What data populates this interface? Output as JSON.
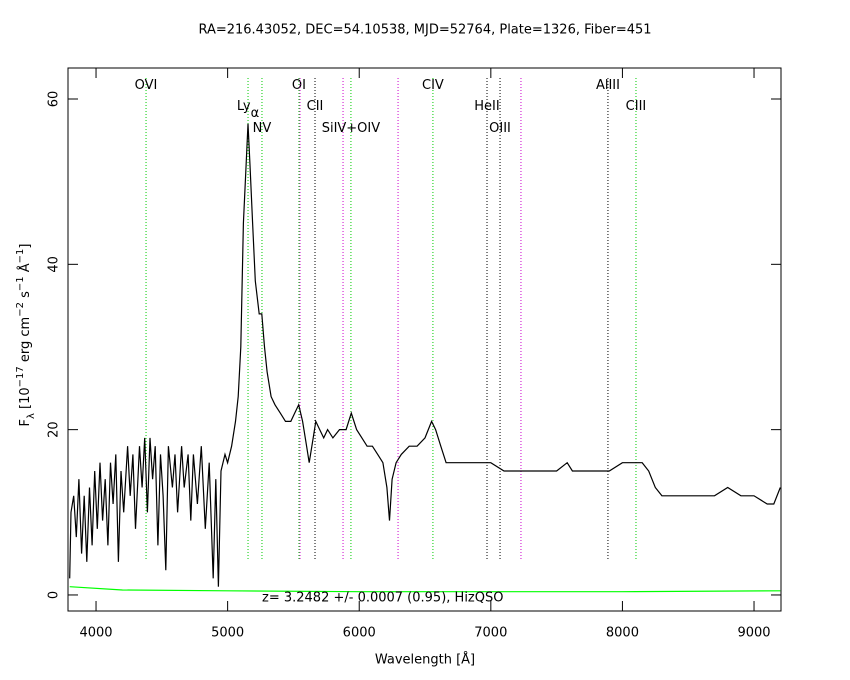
{
  "chart_data": {
    "type": "line",
    "title": "RA=216.43052, DEC=54.10538, MJD=52764, Plate=1326, Fiber=451",
    "xlabel": "Wavelength [Å]",
    "ylabel": [
      {
        "text": "F"
      },
      {
        "text": "λ",
        "shift": "sub"
      },
      {
        "text": " [10"
      },
      {
        "text": "−17",
        "shift": "super"
      },
      {
        "text": " erg cm"
      },
      {
        "text": "−2",
        "shift": "super"
      },
      {
        "text": " s"
      },
      {
        "text": "−1",
        "shift": "super"
      },
      {
        "text": " Å"
      },
      {
        "text": "−1",
        "shift": "super"
      },
      {
        "text": "]"
      }
    ],
    "annotation": "z= 3.2482 +/- 0.0007 (0.95), HizQSO",
    "xlim": [
      3787,
      9205
    ],
    "ylim": [
      -1.94,
      63.75
    ],
    "xticks": [
      4000,
      5000,
      6000,
      7000,
      8000,
      9000
    ],
    "yticks": [
      0,
      20,
      40,
      60
    ],
    "series": [
      {
        "name": "flux",
        "color": "#000000",
        "x": [
          3800,
          3810,
          3830,
          3850,
          3870,
          3890,
          3910,
          3930,
          3950,
          3970,
          3990,
          4010,
          4030,
          4050,
          4070,
          4090,
          4110,
          4130,
          4150,
          4170,
          4190,
          4210,
          4240,
          4260,
          4280,
          4300,
          4330,
          4350,
          4370,
          4390,
          4410,
          4430,
          4450,
          4470,
          4490,
          4510,
          4530,
          4550,
          4580,
          4600,
          4620,
          4650,
          4670,
          4700,
          4720,
          4740,
          4770,
          4800,
          4830,
          4860,
          4890,
          4910,
          4930,
          4950,
          4980,
          5000,
          5030,
          5060,
          5080,
          5100,
          5120,
          5140,
          5155,
          5170,
          5190,
          5210,
          5240,
          5260,
          5280,
          5300,
          5330,
          5360,
          5400,
          5440,
          5480,
          5510,
          5540,
          5570,
          5600,
          5620,
          5650,
          5670,
          5700,
          5730,
          5760,
          5800,
          5850,
          5900,
          5940,
          5980,
          6020,
          6060,
          6100,
          6140,
          6180,
          6210,
          6230,
          6250,
          6280,
          6320,
          6380,
          6440,
          6500,
          6550,
          6580,
          6620,
          6660,
          6720,
          6800,
          6900,
          7000,
          7100,
          7200,
          7300,
          7400,
          7500,
          7580,
          7620,
          7700,
          7800,
          7900,
          8000,
          8100,
          8150,
          8200,
          8250,
          8300,
          8400,
          8500,
          8600,
          8700,
          8800,
          8900,
          9000,
          9100,
          9150,
          9200
        ],
        "values": [
          2,
          10,
          12,
          7,
          14,
          5,
          12,
          4,
          13,
          6,
          15,
          8,
          16,
          9,
          14,
          6,
          16,
          11,
          17,
          4,
          15,
          10,
          18,
          12,
          17,
          8,
          18,
          13,
          19,
          10,
          19,
          14,
          18,
          6,
          17,
          12,
          3,
          18,
          13,
          17,
          10,
          18,
          13,
          17,
          9,
          17,
          11,
          18,
          8,
          16,
          2,
          14,
          1,
          15,
          17,
          16,
          18,
          21,
          24,
          30,
          45,
          52,
          57,
          52,
          45,
          38,
          34,
          34,
          30,
          27,
          24,
          23,
          22,
          21,
          21,
          22,
          23,
          21,
          18,
          16,
          19,
          21,
          20,
          19,
          20,
          19,
          20,
          20,
          22,
          20,
          19,
          18,
          18,
          17,
          16,
          13,
          9,
          14,
          16,
          17,
          18,
          18,
          19,
          21,
          20,
          18,
          16,
          16,
          16,
          16,
          16,
          15,
          15,
          15,
          15,
          15,
          16,
          15,
          15,
          15,
          15,
          16,
          16,
          16,
          15,
          13,
          12,
          12,
          12,
          12,
          12,
          13,
          12,
          12,
          11,
          11,
          13
        ]
      },
      {
        "name": "error",
        "color": "#00ff00",
        "x": [
          3800,
          4200,
          5000,
          6000,
          7000,
          8000,
          9200
        ],
        "values": [
          1.0,
          0.6,
          0.5,
          0.4,
          0.4,
          0.4,
          0.5
        ]
      }
    ],
    "lines": [
      {
        "x": 4380,
        "color": "#00cc00",
        "label": "OVI"
      },
      {
        "x": 5155,
        "color": "#00cc00",
        "label": "Ly",
        "label_sub": "α"
      },
      {
        "x": 5261,
        "color": "#00cc00",
        "label": "NV"
      },
      {
        "x": 5542,
        "color": "#00cc00",
        "label": "OI"
      },
      {
        "x": 5550,
        "color": "#cc00cc",
        "label": null
      },
      {
        "x": 5664,
        "color": "#000000",
        "label": "CII"
      },
      {
        "x": 5877,
        "color": "#cc00cc",
        "label": null
      },
      {
        "x": 5937,
        "color": "#00cc00",
        "label": "SiIV+OIV"
      },
      {
        "x": 6295,
        "color": "#cc00cc",
        "label": null
      },
      {
        "x": 6560,
        "color": "#00cc00",
        "label": "CIV"
      },
      {
        "x": 6971,
        "color": "#000000",
        "label": "HeII"
      },
      {
        "x": 7070,
        "color": "#000000",
        "label": "OIII"
      },
      {
        "x": 7229,
        "color": "#cc00cc",
        "label": null
      },
      {
        "x": 7890,
        "color": "#000000",
        "label": "AlIII"
      },
      {
        "x": 8103,
        "color": "#00cc00",
        "label": "CIII"
      }
    ]
  }
}
